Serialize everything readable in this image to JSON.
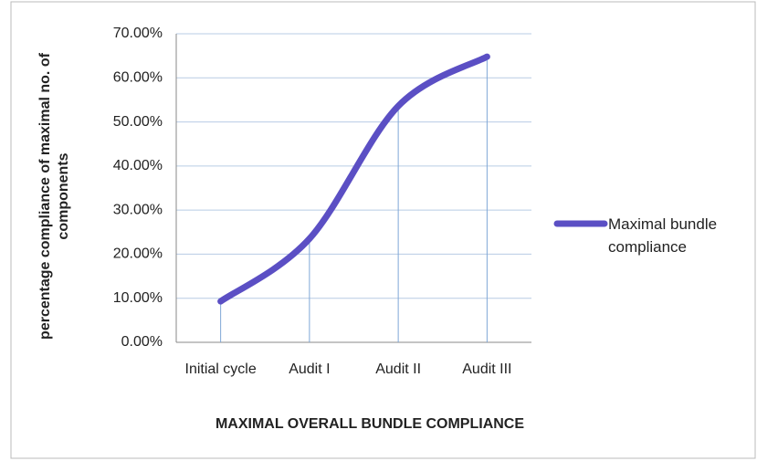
{
  "chart_data": {
    "type": "line",
    "x_label": "MAXIMAL  OVERALL BUNDLE COMPLIANCE",
    "y_label": "percentage compliance of maximal no. of components",
    "categories": [
      "Initial cycle",
      "Audit I",
      "Audit II",
      "Audit III"
    ],
    "series": [
      {
        "name": "Maximal bundle compliance",
        "color": "#5b4fc4",
        "values": [
          9.3,
          23.5,
          53.6,
          64.8
        ]
      }
    ],
    "ylim": [
      0,
      70
    ],
    "yticks": [
      {
        "value": 0,
        "label": "0.00%"
      },
      {
        "value": 10,
        "label": "10.00%"
      },
      {
        "value": 20,
        "label": "20.00%"
      },
      {
        "value": 30,
        "label": "30.00%"
      },
      {
        "value": 40,
        "label": "40.00%"
      },
      {
        "value": 50,
        "label": "50.00%"
      },
      {
        "value": 60,
        "label": "60.00%"
      },
      {
        "value": 70,
        "label": "70.00%"
      }
    ],
    "grid": true,
    "smooth": true,
    "drop_lines": true,
    "legend": "right"
  }
}
